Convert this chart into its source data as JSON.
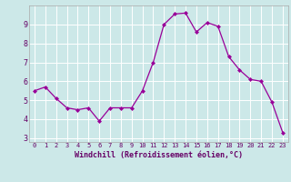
{
  "x": [
    0,
    1,
    2,
    3,
    4,
    5,
    6,
    7,
    8,
    9,
    10,
    11,
    12,
    13,
    14,
    15,
    16,
    17,
    18,
    19,
    20,
    21,
    22,
    23
  ],
  "y": [
    5.5,
    5.7,
    5.1,
    4.6,
    4.5,
    4.6,
    3.9,
    4.6,
    4.6,
    4.6,
    5.5,
    7.0,
    9.0,
    9.55,
    9.6,
    8.6,
    9.1,
    8.9,
    7.3,
    6.6,
    6.1,
    6.0,
    4.9,
    3.3
  ],
  "line_color": "#990099",
  "marker": "D",
  "marker_size": 2.0,
  "bg_color": "#cce8e8",
  "grid_color": "#ffffff",
  "xlabel": "Windchill (Refroidissement éolien,°C)",
  "ylim": [
    2.8,
    10.0
  ],
  "yticks": [
    3,
    4,
    5,
    6,
    7,
    8,
    9
  ],
  "xlim": [
    -0.5,
    23.5
  ],
  "xlabel_color": "#660066",
  "tick_color": "#660066",
  "xlabel_fontsize": 6.0,
  "xtick_fontsize": 5.0,
  "ytick_fontsize": 6.0
}
